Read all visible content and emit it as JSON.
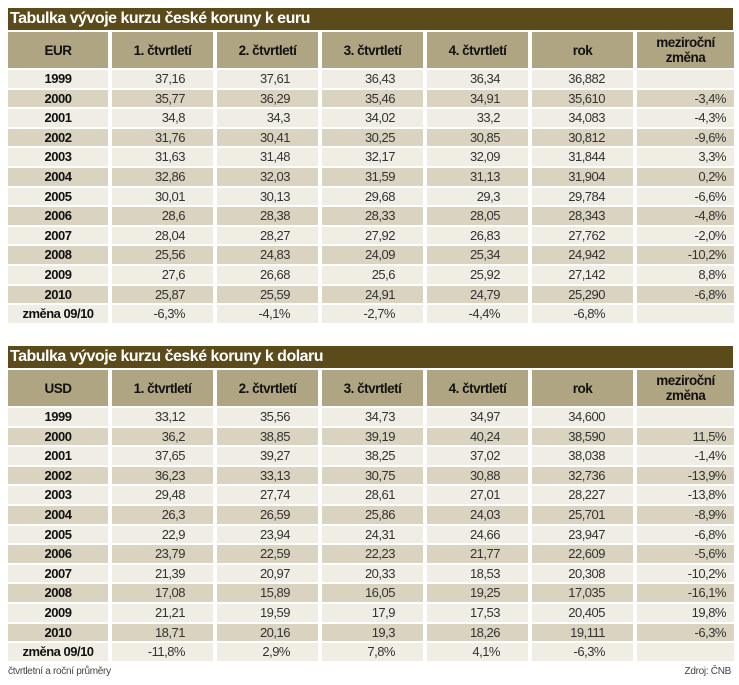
{
  "tables": [
    {
      "title": "Tabulka vývoje kurzu české koruny k euru",
      "headers": [
        "EUR",
        "1. čtvrtletí",
        "2. čtvrtletí",
        "3. čtvrtletí",
        "4. čtvrtletí",
        "rok",
        "meziroční změna"
      ],
      "rows": [
        [
          "1999",
          "37,16",
          "37,61",
          "36,43",
          "36,34",
          "36,882",
          ""
        ],
        [
          "2000",
          "35,77",
          "36,29",
          "35,46",
          "34,91",
          "35,610",
          "-3,4%"
        ],
        [
          "2001",
          "34,8",
          "34,3",
          "34,02",
          "33,2",
          "34,083",
          "-4,3%"
        ],
        [
          "2002",
          "31,76",
          "30,41",
          "30,25",
          "30,85",
          "30,812",
          "-9,6%"
        ],
        [
          "2003",
          "31,63",
          "31,48",
          "32,17",
          "32,09",
          "31,844",
          "3,3%"
        ],
        [
          "2004",
          "32,86",
          "32,03",
          "31,59",
          "31,13",
          "31,904",
          "0,2%"
        ],
        [
          "2005",
          "30,01",
          "30,13",
          "29,68",
          "29,3",
          "29,784",
          "-6,6%"
        ],
        [
          "2006",
          "28,6",
          "28,38",
          "28,33",
          "28,05",
          "28,343",
          "-4,8%"
        ],
        [
          "2007",
          "28,04",
          "28,27",
          "27,92",
          "26,83",
          "27,762",
          "-2,0%"
        ],
        [
          "2008",
          "25,56",
          "24,83",
          "24,09",
          "25,34",
          "24,942",
          "-10,2%"
        ],
        [
          "2009",
          "27,6",
          "26,68",
          "25,6",
          "25,92",
          "27,142",
          "8,8%"
        ],
        [
          "2010",
          "25,87",
          "25,59",
          "24,91",
          "24,79",
          "25,290",
          "-6,8%"
        ],
        [
          "změna 09/10",
          "-6,3%",
          "-4,1%",
          "-2,7%",
          "-4,4%",
          "-6,8%",
          ""
        ]
      ]
    },
    {
      "title": "Tabulka vývoje kurzu české koruny k dolaru",
      "headers": [
        "USD",
        "1. čtvrtletí",
        "2. čtvrtletí",
        "3. čtvrtletí",
        "4. čtvrtletí",
        "rok",
        "meziroční změna"
      ],
      "rows": [
        [
          "1999",
          "33,12",
          "35,56",
          "34,73",
          "34,97",
          "34,600",
          ""
        ],
        [
          "2000",
          "36,2",
          "38,85",
          "39,19",
          "40,24",
          "38,590",
          "11,5%"
        ],
        [
          "2001",
          "37,65",
          "39,27",
          "38,25",
          "37,02",
          "38,038",
          "-1,4%"
        ],
        [
          "2002",
          "36,23",
          "33,13",
          "30,75",
          "30,88",
          "32,736",
          "-13,9%"
        ],
        [
          "2003",
          "29,48",
          "27,74",
          "28,61",
          "27,01",
          "28,227",
          "-13,8%"
        ],
        [
          "2004",
          "26,3",
          "26,59",
          "25,86",
          "24,03",
          "25,701",
          "-8,9%"
        ],
        [
          "2005",
          "22,9",
          "23,94",
          "24,31",
          "24,66",
          "23,947",
          "-6,8%"
        ],
        [
          "2006",
          "23,79",
          "22,59",
          "22,23",
          "21,77",
          "22,609",
          "-5,6%"
        ],
        [
          "2007",
          "21,39",
          "20,97",
          "20,33",
          "18,53",
          "20,308",
          "-10,2%"
        ],
        [
          "2008",
          "17,08",
          "15,89",
          "16,05",
          "19,25",
          "17,035",
          "-16,1%"
        ],
        [
          "2009",
          "21,21",
          "19,59",
          "17,9",
          "17,53",
          "20,405",
          "19,8%"
        ],
        [
          "2010",
          "18,71",
          "20,16",
          "19,3",
          "18,26",
          "19,111",
          "-6,3%"
        ],
        [
          "změna 09/10",
          "-11,8%",
          "2,9%",
          "7,8%",
          "4,1%",
          "-6,3%",
          ""
        ]
      ]
    }
  ],
  "footer": {
    "note": "čtvrtletní a roční průměry",
    "source": "Zdroj: ČNB"
  },
  "colors": {
    "title_bg": "#5b4b1b",
    "header_bg": "#b0a582",
    "row_light": "#f0ede4",
    "row_dark": "#d9d3c0"
  }
}
